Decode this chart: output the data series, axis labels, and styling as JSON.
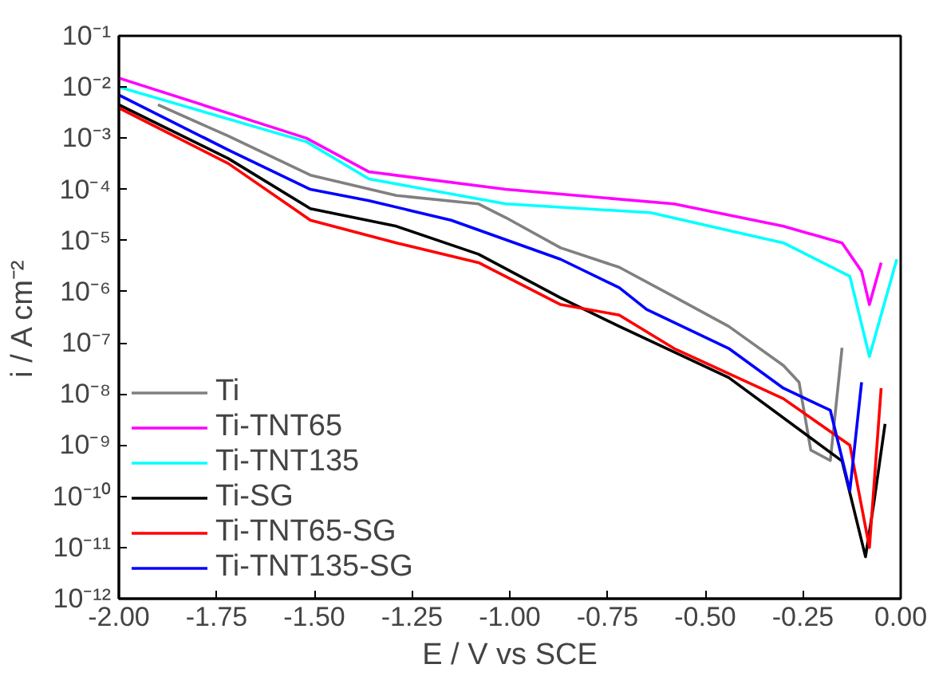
{
  "chart_data": {
    "type": "line",
    "xlabel": "E / V vs SCE",
    "ylabel": "i / A cm⁻²",
    "log": "y",
    "grid": false,
    "legend": "bottom left",
    "xlim": [
      -2,
      0
    ],
    "ylim": [
      1e-12,
      0.1
    ],
    "xticks": [
      {
        "value": -2,
        "label": "-2.00"
      },
      {
        "value": -1.75,
        "label": "-1.75"
      },
      {
        "value": -1.5,
        "label": "-1.50"
      },
      {
        "value": -1.25,
        "label": "-1.25"
      },
      {
        "value": -1,
        "label": "-1.00"
      },
      {
        "value": -0.75,
        "label": "-0.75"
      },
      {
        "value": -0.5,
        "label": "-0.50"
      },
      {
        "value": -0.25,
        "label": "-0.25"
      },
      {
        "value": 0,
        "label": "0.00"
      }
    ],
    "yticks": [
      {
        "value": 1e-12,
        "label": "10⁻¹²"
      },
      {
        "value": 1e-11,
        "label": "10⁻¹¹"
      },
      {
        "value": 1e-10,
        "label": "10⁻¹⁰"
      },
      {
        "value": 1e-09,
        "label": "10⁻⁹"
      },
      {
        "value": 1e-08,
        "label": "10⁻⁸"
      },
      {
        "value": 1e-07,
        "label": "10⁻⁷"
      },
      {
        "value": 1e-06,
        "label": "10⁻⁶"
      },
      {
        "value": 1e-05,
        "label": "10⁻⁵"
      },
      {
        "value": 0.0001,
        "label": "10⁻⁴"
      },
      {
        "value": 0.001,
        "label": "10⁻³"
      },
      {
        "value": 0.01,
        "label": "10⁻²"
      },
      {
        "value": 0.1,
        "label": "10⁻¹"
      }
    ],
    "series": [
      {
        "name": "Ti",
        "color": "#808080",
        "x": [
          -1.9,
          -1.72,
          -1.51,
          -1.29,
          -1.08,
          -1.01,
          -0.87,
          -0.72,
          -0.58,
          -0.44,
          -0.3,
          -0.26,
          -0.23,
          -0.18,
          -0.15
        ],
        "values": [
          0.0045,
          0.0011,
          0.00019,
          7.6e-05,
          5.2e-05,
          2.8e-05,
          7.2e-06,
          3e-06,
          8e-07,
          2.1e-07,
          3.6e-08,
          1.7e-08,
          8e-10,
          5e-10,
          8e-08
        ]
      },
      {
        "name": "Ti-TNT65",
        "color": "#ff00ff",
        "x": [
          -2,
          -1.52,
          -1.36,
          -1.01,
          -0.58,
          -0.3,
          -0.15,
          -0.1,
          -0.08,
          -0.05
        ],
        "values": [
          0.015,
          0.001,
          0.00022,
          0.0001,
          5.2e-05,
          1.9e-05,
          9e-06,
          2.5e-06,
          5.6e-07,
          3.7e-06
        ]
      },
      {
        "name": "Ti-TNT135",
        "color": "#00ffff",
        "x": [
          -2,
          -1.52,
          -1.36,
          -1.01,
          -0.64,
          -0.3,
          -0.13,
          -0.08,
          -0.01
        ],
        "values": [
          0.01,
          0.00085,
          0.00016,
          5.2e-05,
          3.5e-05,
          9e-06,
          2e-06,
          5.4e-08,
          4.3e-06
        ]
      },
      {
        "name": "Ti-SG",
        "color": "#000000",
        "x": [
          -2,
          -1.72,
          -1.51,
          -1.29,
          -1.08,
          -0.87,
          -0.72,
          -0.44,
          -0.15,
          -0.09,
          -0.07,
          -0.04
        ],
        "values": [
          0.0045,
          0.0004,
          4.2e-05,
          1.9e-05,
          5.4e-06,
          7.6e-07,
          2.1e-07,
          2.1e-08,
          4.9e-10,
          6.6e-12,
          6.3e-11,
          2.6e-09
        ]
      },
      {
        "name": "Ti-TNT65-SG",
        "color": "#ff0000",
        "x": [
          -2,
          -1.72,
          -1.51,
          -1.29,
          -1.08,
          -0.87,
          -0.72,
          -0.58,
          -0.3,
          -0.13,
          -0.08,
          -0.05
        ],
        "values": [
          0.0039,
          0.00032,
          2.5e-05,
          9e-06,
          3.7e-06,
          5.6e-07,
          3.5e-07,
          7.8e-08,
          8.1e-09,
          1e-09,
          1e-11,
          1.3e-08
        ]
      },
      {
        "name": "Ti-TNT135-SG",
        "color": "#0000ff",
        "x": [
          -2,
          -1.72,
          -1.51,
          -1.36,
          -1.15,
          -0.87,
          -0.72,
          -0.65,
          -0.44,
          -0.3,
          -0.18,
          -0.13,
          -0.1
        ],
        "values": [
          0.007,
          0.00059,
          0.0001,
          6e-05,
          2.5e-05,
          4.3e-06,
          1.2e-06,
          4.5e-07,
          7.8e-08,
          1.3e-08,
          4.8e-09,
          1.3e-10,
          1.7e-08
        ]
      }
    ]
  }
}
